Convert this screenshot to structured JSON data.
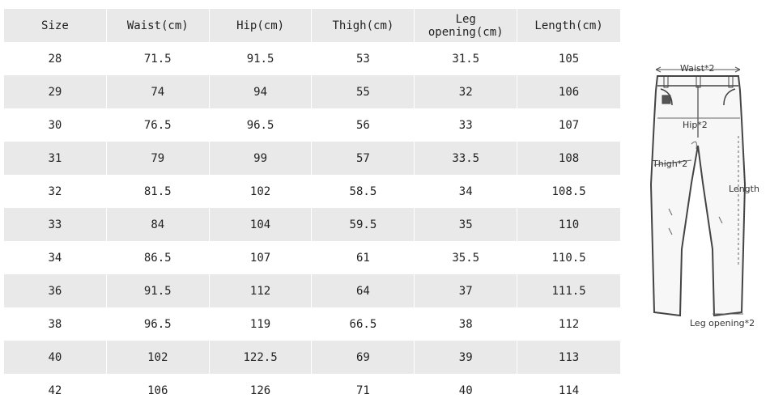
{
  "table": {
    "headers": [
      "Size",
      "Waist(cm)",
      "Hip(cm)",
      "Thigh(cm)",
      "Leg opening(cm)",
      "Length(cm)"
    ],
    "rows": [
      [
        "28",
        "71.5",
        "91.5",
        "53",
        "31.5",
        "105"
      ],
      [
        "29",
        "74",
        "94",
        "55",
        "32",
        "106"
      ],
      [
        "30",
        "76.5",
        "96.5",
        "56",
        "33",
        "107"
      ],
      [
        "31",
        "79",
        "99",
        "57",
        "33.5",
        "108"
      ],
      [
        "32",
        "81.5",
        "102",
        "58.5",
        "34",
        "108.5"
      ],
      [
        "33",
        "84",
        "104",
        "59.5",
        "35",
        "110"
      ],
      [
        "34",
        "86.5",
        "107",
        "61",
        "35.5",
        "110.5"
      ],
      [
        "36",
        "91.5",
        "112",
        "64",
        "37",
        "111.5"
      ],
      [
        "38",
        "96.5",
        "119",
        "66.5",
        "38",
        "112"
      ],
      [
        "40",
        "102",
        "122.5",
        "69",
        "39",
        "113"
      ],
      [
        "42",
        "106",
        "126",
        "71",
        "40",
        "114"
      ]
    ]
  },
  "diagram": {
    "waist_label": "Waist*2",
    "hip_label": "Hip*2",
    "thigh_label": "Thigh*2",
    "length_label": "Length",
    "leg_opening_label": "Leg opening*2"
  }
}
